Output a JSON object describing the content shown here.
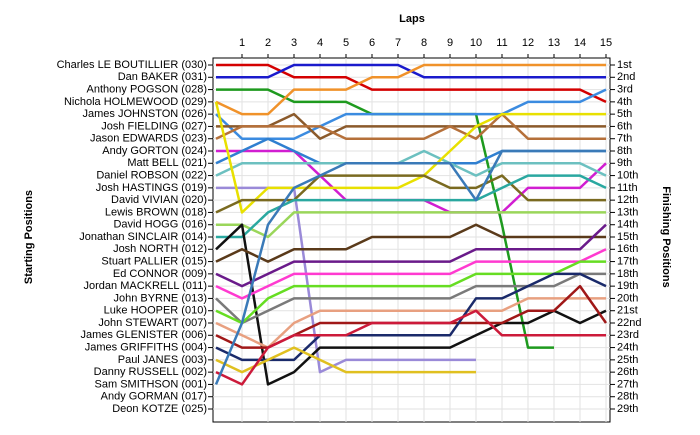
{
  "chart_data": {
    "type": "line",
    "title": "Laps",
    "y_title_left": "Starting Positions",
    "y_title_right": "Finishing Positions",
    "x": [
      0,
      1,
      2,
      3,
      4,
      5,
      6,
      7,
      8,
      9,
      10,
      11,
      12,
      13,
      14,
      15
    ],
    "xlim": [
      0,
      15
    ],
    "xticks": [
      1,
      2,
      3,
      4,
      5,
      6,
      7,
      8,
      9,
      10,
      11,
      12,
      13,
      14,
      15
    ],
    "ylim": [
      29,
      1
    ],
    "yticks": [
      1,
      2,
      3,
      4,
      5,
      6,
      7,
      8,
      9,
      10,
      11,
      12,
      13,
      14,
      15,
      16,
      17,
      18,
      19,
      20,
      21,
      22,
      23,
      24,
      25,
      26,
      27,
      28,
      29
    ],
    "finishing_positions": [
      "1st",
      "2nd",
      "3rd",
      "4th",
      "5th",
      "6th",
      "7th",
      "8th",
      "9th",
      "10th",
      "11th",
      "12th",
      "13th",
      "14th",
      "15th",
      "16th",
      "17th",
      "18th",
      "19th",
      "20th",
      "21st",
      "22nd",
      "23rd",
      "24th",
      "25th",
      "26th",
      "27th",
      "28th",
      "29th"
    ],
    "grid": true,
    "series": [
      {
        "name": "Charles LE BOUTILLIER (030)",
        "color": "#d40000",
        "values": [
          1,
          1,
          1,
          2,
          2,
          2,
          3,
          3,
          3,
          3,
          3,
          3,
          3,
          3,
          3,
          4
        ]
      },
      {
        "name": "Dan BAKER (031)",
        "color": "#1a1acc",
        "values": [
          2,
          2,
          2,
          1,
          1,
          1,
          1,
          1,
          2,
          2,
          2,
          2,
          2,
          2,
          2,
          2
        ]
      },
      {
        "name": "Anthony POGSON (028)",
        "color": "#1e9a1e",
        "values": [
          3,
          3,
          3,
          4,
          4,
          4,
          5,
          5,
          5,
          5,
          5,
          14,
          24,
          24,
          null,
          null
        ]
      },
      {
        "name": "Nichola HOLMEWOOD (029)",
        "color": "#f0922a",
        "values": [
          4,
          5,
          5,
          3,
          3,
          3,
          2,
          2,
          1,
          1,
          1,
          1,
          1,
          1,
          1,
          1
        ]
      },
      {
        "name": "James JOHNSTON (026)",
        "color": "#3b8be0",
        "values": [
          5,
          7,
          7,
          7,
          6,
          5,
          5,
          5,
          5,
          5,
          5,
          5,
          4,
          4,
          4,
          3
        ]
      },
      {
        "name": "Josh FIELDING (027)",
        "color": "#8b5a2b",
        "values": [
          6,
          6,
          6,
          5,
          7,
          6,
          6,
          6,
          6,
          6,
          6,
          6,
          6,
          6,
          6,
          6
        ]
      },
      {
        "name": "Jason EDWARDS (023)",
        "color": "#b5703a",
        "values": [
          7,
          6,
          6,
          6,
          6,
          7,
          7,
          7,
          7,
          6,
          7,
          5,
          7,
          7,
          7,
          7
        ]
      },
      {
        "name": "Andy GORTON (024)",
        "color": "#d11ed1",
        "values": [
          8,
          8,
          8,
          8,
          10,
          12,
          12,
          12,
          12,
          13,
          13,
          13,
          11,
          11,
          11,
          9
        ]
      },
      {
        "name": "Matt BELL (021)",
        "color": "#2f7fd0",
        "values": [
          9,
          8,
          7,
          8,
          9,
          9,
          9,
          9,
          9,
          9,
          9,
          8,
          8,
          8,
          8,
          8
        ]
      },
      {
        "name": "Daniel ROBSON (022)",
        "color": "#6cc0c0",
        "values": [
          10,
          9,
          9,
          9,
          9,
          9,
          9,
          9,
          8,
          9,
          10,
          9,
          9,
          9,
          9,
          10
        ]
      },
      {
        "name": "Josh HASTINGS (019)",
        "color": "#9a8ad8",
        "values": [
          11,
          11,
          11,
          11,
          26,
          25,
          25,
          25,
          25,
          25,
          25,
          null,
          null,
          null,
          null,
          null
        ]
      },
      {
        "name": "David VIVIAN (020)",
        "color": "#e8e000",
        "values": [
          4,
          13,
          11,
          11,
          11,
          11,
          11,
          11,
          10,
          8,
          6,
          5,
          5,
          5,
          5,
          5
        ]
      },
      {
        "name": "Lewis BROWN (018)",
        "color": "#7a6a20",
        "values": [
          13,
          12,
          12,
          12,
          10,
          10,
          10,
          10,
          10,
          11,
          11,
          10,
          12,
          12,
          12,
          12
        ]
      },
      {
        "name": "David HOGG (016)",
        "color": "#9ad65a",
        "values": [
          14,
          14,
          15,
          13,
          13,
          13,
          13,
          13,
          13,
          13,
          13,
          13,
          13,
          13,
          13,
          13
        ]
      },
      {
        "name": "Jonathan SINCLAIR (014)",
        "color": "#2aa8a0",
        "values": [
          15,
          15,
          13,
          12,
          12,
          12,
          12,
          12,
          12,
          12,
          12,
          11,
          10,
          10,
          10,
          11
        ]
      },
      {
        "name": "Josh NORTH (012)",
        "color": "#111111",
        "values": [
          16,
          14,
          27,
          26,
          24,
          24,
          24,
          24,
          24,
          24,
          23,
          22,
          22,
          21,
          22,
          21
        ]
      },
      {
        "name": "Stuart PALLIER (015)",
        "color": "#5a3a1a",
        "values": [
          17,
          16,
          17,
          16,
          16,
          16,
          15,
          15,
          15,
          15,
          14,
          15,
          15,
          15,
          15,
          15
        ]
      },
      {
        "name": "Ed CONNOR (009)",
        "color": "#6a1a8a",
        "values": [
          18,
          19,
          18,
          17,
          17,
          17,
          17,
          17,
          17,
          17,
          16,
          16,
          16,
          16,
          16,
          14
        ]
      },
      {
        "name": "Jordan MACKRELL (011)",
        "color": "#ff3ad0",
        "values": [
          19,
          20,
          19,
          18,
          18,
          18,
          18,
          18,
          18,
          18,
          17,
          17,
          17,
          17,
          17,
          16
        ]
      },
      {
        "name": "John BYRNE (013)",
        "color": "#7a7a7a",
        "values": [
          20,
          22,
          21,
          20,
          20,
          20,
          20,
          20,
          20,
          20,
          19,
          19,
          19,
          19,
          18,
          18
        ]
      },
      {
        "name": "Luke HOOPER (010)",
        "color": "#66dd22",
        "values": [
          21,
          22,
          20,
          19,
          19,
          19,
          19,
          19,
          19,
          19,
          18,
          18,
          18,
          18,
          17,
          17
        ]
      },
      {
        "name": "John STEWART (007)",
        "color": "#e8a080",
        "values": [
          22,
          23,
          24,
          22,
          21,
          21,
          21,
          21,
          21,
          21,
          21,
          21,
          20,
          20,
          20,
          20
        ]
      },
      {
        "name": "James GLENISTER (006)",
        "color": "#a01818",
        "values": [
          23,
          24,
          24,
          23,
          22,
          22,
          22,
          22,
          22,
          22,
          22,
          22,
          21,
          21,
          19,
          22
        ]
      },
      {
        "name": "James GRIFFITHS (004)",
        "color": "#1a2a6a",
        "values": [
          24,
          25,
          25,
          25,
          23,
          23,
          23,
          23,
          23,
          23,
          20,
          20,
          19,
          18,
          18,
          19
        ]
      },
      {
        "name": "Paul JANES (003)",
        "color": "#e0c020",
        "values": [
          25,
          26,
          25,
          24,
          25,
          26,
          26,
          26,
          26,
          26,
          26,
          null,
          null,
          null,
          null,
          null
        ]
      },
      {
        "name": "Danny RUSSELL (002)",
        "color": "#cc1a3a",
        "values": [
          26,
          27,
          24,
          23,
          23,
          23,
          22,
          22,
          22,
          22,
          21,
          23,
          23,
          23,
          23,
          23
        ]
      },
      {
        "name": "Sam SMITHSON (001)",
        "color": "#3a7ab8",
        "values": [
          27,
          22,
          14,
          11,
          10,
          9,
          9,
          9,
          9,
          9,
          12,
          8,
          8,
          8,
          8,
          8
        ]
      },
      {
        "name": "Andy GORMAN (017)",
        "color": "#999999",
        "values": [
          null,
          null,
          null,
          null,
          null,
          null,
          null,
          null,
          null,
          null,
          null,
          null,
          null,
          null,
          null,
          null
        ]
      },
      {
        "name": "Deon KOTZE (025)",
        "color": "#999999",
        "values": [
          null,
          null,
          null,
          null,
          null,
          null,
          null,
          null,
          null,
          null,
          null,
          null,
          null,
          null,
          null,
          null
        ]
      }
    ]
  }
}
